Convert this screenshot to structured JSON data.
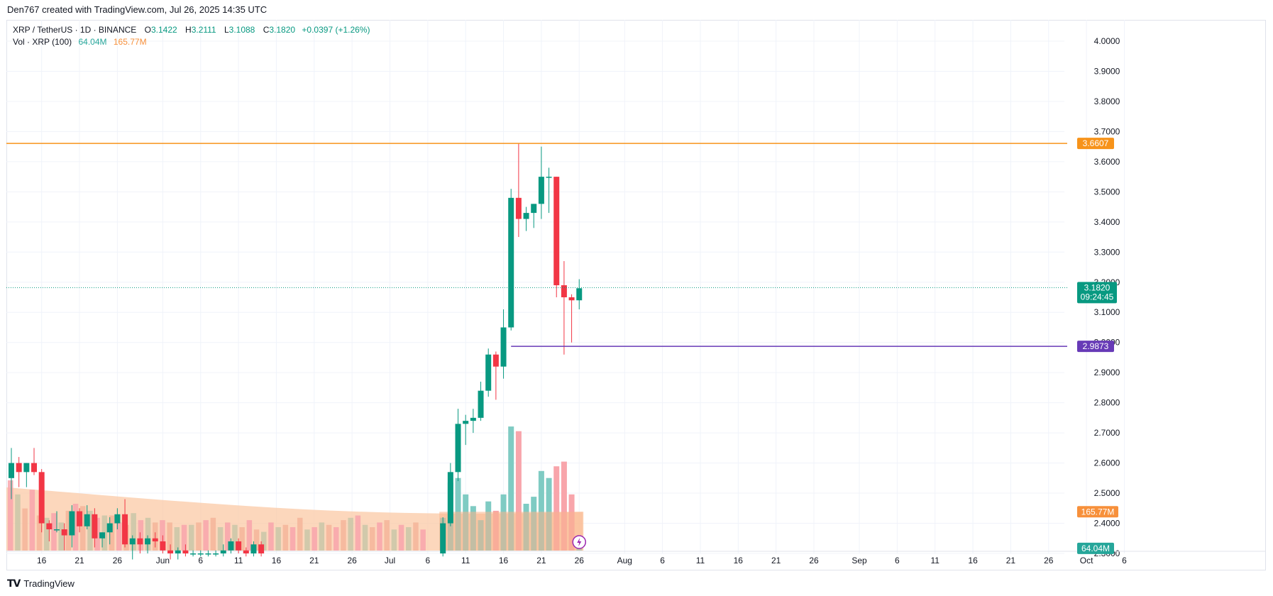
{
  "header": {
    "attribution": "Den767 created with TradingView.com, Jul 26, 2025 14:35 UTC"
  },
  "legend": {
    "symbol": "XRP / TetherUS · 1D · BINANCE",
    "open_label": "O",
    "open": "3.1422",
    "high_label": "H",
    "high": "3.2111",
    "low_label": "L",
    "low": "3.1088",
    "close_label": "C",
    "close": "3.1820",
    "change": "+0.0397 (+1.26%)",
    "volume_label": "Vol · XRP (100)",
    "volume": "64.04M",
    "volume_ma": "165.77M"
  },
  "footer": {
    "brand": "TradingView"
  },
  "colors": {
    "up": "#089981",
    "down": "#f23645",
    "vol_up": "#7fcbc3",
    "vol_down": "#f8a5ab",
    "vol_ma": "#f7903b",
    "resistance": "#f7931a",
    "support": "#673ab7",
    "last_price": "#089981"
  },
  "chart_data": {
    "type": "candlestick",
    "interval": "1D",
    "y_axis": {
      "ticks": [
        "2.3000",
        "2.4000",
        "2.5000",
        "2.6000",
        "2.7000",
        "2.8000",
        "2.9000",
        "3.0000",
        "3.1000",
        "3.2000",
        "3.3000",
        "3.4000",
        "3.5000",
        "3.6000",
        "3.7000",
        "3.8000",
        "3.9000",
        "4.0000"
      ],
      "range": [
        2.28,
        4.05
      ]
    },
    "x_axis": {
      "ticks": [
        {
          "label": "16",
          "date": "2025-05-16"
        },
        {
          "label": "21",
          "date": "2025-05-21"
        },
        {
          "label": "26",
          "date": "2025-05-26"
        },
        {
          "label": "Jun",
          "date": "2025-06-01"
        },
        {
          "label": "6",
          "date": "2025-06-06"
        },
        {
          "label": "11",
          "date": "2025-06-11"
        },
        {
          "label": "16",
          "date": "2025-06-16"
        },
        {
          "label": "21",
          "date": "2025-06-21"
        },
        {
          "label": "26",
          "date": "2025-06-26"
        },
        {
          "label": "Jul",
          "date": "2025-07-01"
        },
        {
          "label": "6",
          "date": "2025-07-06"
        },
        {
          "label": "11",
          "date": "2025-07-11"
        },
        {
          "label": "16",
          "date": "2025-07-16"
        },
        {
          "label": "21",
          "date": "2025-07-21"
        },
        {
          "label": "26",
          "date": "2025-07-26"
        },
        {
          "label": "Aug",
          "date": "2025-08-01"
        },
        {
          "label": "6",
          "date": "2025-08-06"
        },
        {
          "label": "11",
          "date": "2025-08-11"
        },
        {
          "label": "16",
          "date": "2025-08-16"
        },
        {
          "label": "21",
          "date": "2025-08-21"
        },
        {
          "label": "26",
          "date": "2025-08-26"
        },
        {
          "label": "Sep",
          "date": "2025-09-01"
        },
        {
          "label": "6",
          "date": "2025-09-06"
        },
        {
          "label": "11",
          "date": "2025-09-11"
        },
        {
          "label": "16",
          "date": "2025-09-16"
        },
        {
          "label": "21",
          "date": "2025-09-21"
        },
        {
          "label": "26",
          "date": "2025-09-26"
        },
        {
          "label": "Oct",
          "date": "2025-10-01"
        },
        {
          "label": "6",
          "date": "2025-10-06"
        }
      ]
    },
    "horizontal_lines": [
      {
        "price": 3.6607,
        "label": "3.6607",
        "color": "#f7931a"
      },
      {
        "price": 2.9873,
        "label": "2.9873",
        "color": "#673ab7",
        "from_date": "2025-07-17"
      }
    ],
    "last_price": {
      "value": 3.182,
      "label": "3.1820",
      "countdown": "09:24:45"
    },
    "volume_labels": {
      "ma": "165.77M",
      "last": "64.04M"
    },
    "candles": [
      {
        "date": "2025-05-12",
        "o": 2.55,
        "h": 2.65,
        "l": 2.48,
        "c": 2.6
      },
      {
        "date": "2025-05-13",
        "o": 2.6,
        "h": 2.62,
        "l": 2.52,
        "c": 2.57
      },
      {
        "date": "2025-05-14",
        "o": 2.57,
        "h": 2.6,
        "l": 2.52,
        "c": 2.6
      },
      {
        "date": "2025-05-15",
        "o": 2.6,
        "h": 2.65,
        "l": 2.56,
        "c": 2.57
      },
      {
        "date": "2025-05-16",
        "o": 2.57,
        "h": 2.58,
        "l": 2.37,
        "c": 2.4
      },
      {
        "date": "2025-05-17",
        "o": 2.4,
        "h": 2.41,
        "l": 2.34,
        "c": 2.38
      },
      {
        "date": "2025-05-18",
        "o": 2.38,
        "h": 2.44,
        "l": 2.37,
        "c": 2.38
      },
      {
        "date": "2025-05-19",
        "o": 2.38,
        "h": 2.4,
        "l": 2.31,
        "c": 2.36
      },
      {
        "date": "2025-05-20",
        "o": 2.36,
        "h": 2.46,
        "l": 2.32,
        "c": 2.44
      },
      {
        "date": "2025-05-21",
        "o": 2.44,
        "h": 2.45,
        "l": 2.37,
        "c": 2.39
      },
      {
        "date": "2025-05-22",
        "o": 2.39,
        "h": 2.46,
        "l": 2.38,
        "c": 2.43
      },
      {
        "date": "2025-05-23",
        "o": 2.43,
        "h": 2.45,
        "l": 2.32,
        "c": 2.35
      },
      {
        "date": "2025-05-24",
        "o": 2.35,
        "h": 2.37,
        "l": 2.32,
        "c": 2.37
      },
      {
        "date": "2025-05-25",
        "o": 2.37,
        "h": 2.42,
        "l": 2.33,
        "c": 2.4
      },
      {
        "date": "2025-05-26",
        "o": 2.4,
        "h": 2.45,
        "l": 2.38,
        "c": 2.43
      },
      {
        "date": "2025-05-27",
        "o": 2.43,
        "h": 2.48,
        "l": 2.32,
        "c": 2.33
      },
      {
        "date": "2025-05-28",
        "o": 2.33,
        "h": 2.36,
        "l": 2.28,
        "c": 2.35
      },
      {
        "date": "2025-05-29",
        "o": 2.35,
        "h": 2.37,
        "l": 2.3,
        "c": 2.33
      },
      {
        "date": "2025-05-30",
        "o": 2.33,
        "h": 2.36,
        "l": 2.3,
        "c": 2.35
      },
      {
        "date": "2025-05-31",
        "o": 2.35,
        "h": 2.37,
        "l": 2.32,
        "c": 2.34
      },
      {
        "date": "2025-06-01",
        "o": 2.34,
        "h": 2.36,
        "l": 2.3,
        "c": 2.31
      },
      {
        "date": "2025-06-02",
        "o": 2.31,
        "h": 2.33,
        "l": 2.28,
        "c": 2.3
      },
      {
        "date": "2025-06-03",
        "o": 2.3,
        "h": 2.32,
        "l": 2.28,
        "c": 2.31
      },
      {
        "date": "2025-06-04",
        "o": 2.31,
        "h": 2.33,
        "l": 2.29,
        "c": 2.3
      },
      {
        "date": "2025-06-05",
        "o": 2.3,
        "h": 2.31,
        "l": 2.29,
        "c": 2.3
      },
      {
        "date": "2025-06-06",
        "o": 2.3,
        "h": 2.31,
        "l": 2.29,
        "c": 2.3
      },
      {
        "date": "2025-06-07",
        "o": 2.3,
        "h": 2.31,
        "l": 2.29,
        "c": 2.3
      },
      {
        "date": "2025-06-08",
        "o": 2.3,
        "h": 2.31,
        "l": 2.29,
        "c": 2.3
      },
      {
        "date": "2025-06-09",
        "o": 2.3,
        "h": 2.33,
        "l": 2.29,
        "c": 2.31
      },
      {
        "date": "2025-06-10",
        "o": 2.31,
        "h": 2.35,
        "l": 2.3,
        "c": 2.34
      },
      {
        "date": "2025-06-11",
        "o": 2.34,
        "h": 2.35,
        "l": 2.3,
        "c": 2.31
      },
      {
        "date": "2025-06-12",
        "o": 2.31,
        "h": 2.32,
        "l": 2.29,
        "c": 2.3
      },
      {
        "date": "2025-06-13",
        "o": 2.3,
        "h": 2.34,
        "l": 2.29,
        "c": 2.33
      },
      {
        "date": "2025-06-14",
        "o": 2.33,
        "h": 2.34,
        "l": 2.29,
        "c": 2.3
      }
    ],
    "candles_recent": [
      {
        "date": "2025-07-08",
        "o": 2.3,
        "h": 2.42,
        "l": 2.29,
        "c": 2.4
      },
      {
        "date": "2025-07-09",
        "o": 2.4,
        "h": 2.6,
        "l": 2.39,
        "c": 2.57
      },
      {
        "date": "2025-07-10",
        "o": 2.57,
        "h": 2.78,
        "l": 2.54,
        "c": 2.73
      },
      {
        "date": "2025-07-11",
        "o": 2.73,
        "h": 2.76,
        "l": 2.66,
        "c": 2.74
      },
      {
        "date": "2025-07-12",
        "o": 2.74,
        "h": 2.78,
        "l": 2.7,
        "c": 2.75
      },
      {
        "date": "2025-07-13",
        "o": 2.75,
        "h": 2.87,
        "l": 2.74,
        "c": 2.84
      },
      {
        "date": "2025-07-14",
        "o": 2.84,
        "h": 2.98,
        "l": 2.82,
        "c": 2.96
      },
      {
        "date": "2025-07-15",
        "o": 2.96,
        "h": 2.97,
        "l": 2.81,
        "c": 2.92
      },
      {
        "date": "2025-07-16",
        "o": 2.92,
        "h": 3.11,
        "l": 2.88,
        "c": 3.05
      },
      {
        "date": "2025-07-17",
        "o": 3.05,
        "h": 3.51,
        "l": 3.04,
        "c": 3.48
      },
      {
        "date": "2025-07-18",
        "o": 3.48,
        "h": 3.66,
        "l": 3.35,
        "c": 3.41
      },
      {
        "date": "2025-07-19",
        "o": 3.41,
        "h": 3.45,
        "l": 3.37,
        "c": 3.43
      },
      {
        "date": "2025-07-20",
        "o": 3.43,
        "h": 3.46,
        "l": 3.38,
        "c": 3.46
      },
      {
        "date": "2025-07-21",
        "o": 3.46,
        "h": 3.65,
        "l": 3.41,
        "c": 3.55
      },
      {
        "date": "2025-07-22",
        "o": 3.55,
        "h": 3.58,
        "l": 3.43,
        "c": 3.55
      },
      {
        "date": "2025-07-23",
        "o": 3.55,
        "h": 3.55,
        "l": 3.15,
        "c": 3.19
      },
      {
        "date": "2025-07-24",
        "o": 3.19,
        "h": 3.27,
        "l": 2.96,
        "c": 3.15
      },
      {
        "date": "2025-07-25",
        "o": 3.15,
        "h": 3.16,
        "l": 3.0,
        "c": 3.14
      },
      {
        "date": "2025-07-26",
        "o": 3.14,
        "h": 3.21,
        "l": 3.11,
        "c": 3.18
      }
    ],
    "volume": {
      "note_units": "millions of XRP",
      "values": [
        {
          "date": "2025-07-08",
          "v": 140,
          "up": true
        },
        {
          "date": "2025-07-09",
          "v": 290,
          "up": true
        },
        {
          "date": "2025-07-10",
          "v": 310,
          "up": true
        },
        {
          "date": "2025-07-11",
          "v": 240,
          "up": true
        },
        {
          "date": "2025-07-12",
          "v": 190,
          "up": true
        },
        {
          "date": "2025-07-13",
          "v": 130,
          "up": true
        },
        {
          "date": "2025-07-14",
          "v": 210,
          "up": true
        },
        {
          "date": "2025-07-15",
          "v": 170,
          "up": false
        },
        {
          "date": "2025-07-16",
          "v": 240,
          "up": true
        },
        {
          "date": "2025-07-17",
          "v": 530,
          "up": true
        },
        {
          "date": "2025-07-18",
          "v": 510,
          "up": false
        },
        {
          "date": "2025-07-19",
          "v": 200,
          "up": true
        },
        {
          "date": "2025-07-20",
          "v": 230,
          "up": true
        },
        {
          "date": "2025-07-21",
          "v": 340,
          "up": true
        },
        {
          "date": "2025-07-22",
          "v": 310,
          "up": true
        },
        {
          "date": "2025-07-23",
          "v": 360,
          "up": false
        },
        {
          "date": "2025-07-24",
          "v": 380,
          "up": false
        },
        {
          "date": "2025-07-25",
          "v": 240,
          "up": false
        },
        {
          "date": "2025-07-26",
          "v": 64.04,
          "up": true
        }
      ],
      "ma_level": 165.77
    }
  }
}
